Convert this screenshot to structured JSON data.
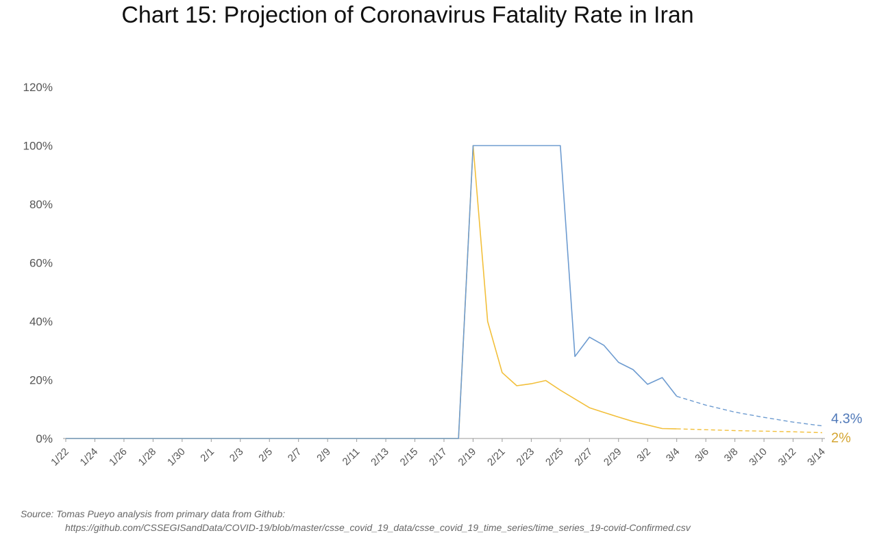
{
  "title": "Chart 15: Projection of Coronavirus Fatality Rate in Iran",
  "source_line1": "Source: Tomas Pueyo analysis from primary data from Github:",
  "source_line2": "https://github.com/CSSEGISandData/COVID-19/blob/master/csse_covid_19_data/csse_covid_19_time_series/time_series_19-covid-Confirmed.csv",
  "colors": {
    "blue": "#6d9bd0",
    "yellow": "#f2bf3a",
    "blue_label": "#4f78b8",
    "yellow_label": "#d4a531"
  },
  "chart_data": {
    "type": "line",
    "title": "Chart 15: Projection of Coronavirus Fatality Rate in Iran",
    "xlabel": "",
    "ylabel": "",
    "ylim": [
      0,
      120
    ],
    "y_ticks": [
      "0%",
      "20%",
      "40%",
      "60%",
      "80%",
      "100%",
      "120%"
    ],
    "x_tick_labels": [
      "1/22",
      "1/24",
      "1/26",
      "1/28",
      "1/30",
      "2/1",
      "2/3",
      "2/5",
      "2/7",
      "2/9",
      "2/11",
      "2/13",
      "2/15",
      "2/17",
      "2/19",
      "2/21",
      "2/23",
      "2/25",
      "2/27",
      "2/29",
      "3/2",
      "3/4",
      "3/6",
      "3/8",
      "3/10",
      "3/12",
      "3/14"
    ],
    "x_start": "1/22",
    "x_end": "3/14",
    "grid": false,
    "series": [
      {
        "color": "#6d9bd0",
        "end_label": "4.3%",
        "actual": [
          [
            "2/18",
            0
          ],
          [
            "2/19",
            100
          ],
          [
            "2/25",
            100
          ],
          [
            "2/26",
            28
          ],
          [
            "2/27",
            34.6
          ],
          [
            "2/28",
            31.8
          ],
          [
            "2/29",
            26
          ],
          [
            "3/1",
            23.5
          ],
          [
            "3/2",
            18.5
          ],
          [
            "3/3",
            20.8
          ],
          [
            "3/4",
            14.4
          ]
        ],
        "projected": [
          [
            "3/4",
            14.4
          ],
          [
            "3/6",
            11.4
          ],
          [
            "3/8",
            9.0
          ],
          [
            "3/10",
            7.2
          ],
          [
            "3/12",
            5.6
          ],
          [
            "3/14",
            4.3
          ]
        ]
      },
      {
        "color": "#f2bf3a",
        "end_label": "2%",
        "actual": [
          [
            "2/18",
            0
          ],
          [
            "2/19",
            100
          ],
          [
            "2/20",
            40
          ],
          [
            "2/21",
            22.5
          ],
          [
            "2/22",
            18
          ],
          [
            "2/23",
            18.7
          ],
          [
            "2/24",
            19.8
          ],
          [
            "2/25",
            16.5
          ],
          [
            "2/26",
            13.5
          ],
          [
            "2/27",
            10.5
          ],
          [
            "2/28",
            8.9
          ],
          [
            "2/29",
            7.3
          ],
          [
            "3/1",
            5.8
          ],
          [
            "3/2",
            4.6
          ],
          [
            "3/3",
            3.4
          ],
          [
            "3/4",
            3.3
          ]
        ],
        "projected": [
          [
            "3/4",
            3.3
          ],
          [
            "3/6",
            3.0
          ],
          [
            "3/8",
            2.7
          ],
          [
            "3/10",
            2.5
          ],
          [
            "3/12",
            2.3
          ],
          [
            "3/14",
            2.0
          ]
        ]
      }
    ]
  }
}
